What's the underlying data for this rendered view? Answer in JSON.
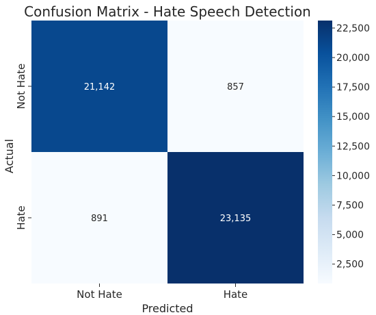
{
  "chart_data": {
    "type": "heatmap",
    "title": "Confusion Matrix - Hate Speech Detection",
    "xlabel": "Predicted",
    "ylabel": "Actual",
    "x_categories": [
      "Not Hate",
      "Hate"
    ],
    "y_categories": [
      "Not Hate",
      "Hate"
    ],
    "values": [
      [
        21142,
        857
      ],
      [
        891,
        23135
      ]
    ],
    "value_labels": [
      [
        "21,142",
        "857"
      ],
      [
        "891",
        "23,135"
      ]
    ],
    "colormap": "Blues",
    "color_range": [
      857,
      23135
    ],
    "colorbar_ticks": [
      2500,
      5000,
      7500,
      10000,
      12500,
      15000,
      17500,
      20000,
      22500
    ],
    "colorbar_tick_labels": [
      "2,500",
      "5,000",
      "7,500",
      "10,000",
      "12,500",
      "15,000",
      "17,500",
      "20,000",
      "22,500"
    ]
  }
}
